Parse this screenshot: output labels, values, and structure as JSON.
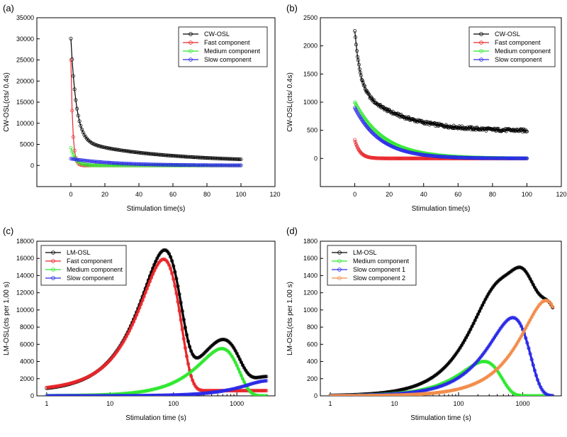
{
  "chart_data": [
    {
      "panel": "(a)",
      "type": "scatter",
      "xscale": "linear",
      "xlim": [
        -20,
        120
      ],
      "ylim": [
        -5000,
        35000
      ],
      "xticks": [
        0,
        20,
        40,
        60,
        80,
        100,
        120
      ],
      "yticks": [
        0,
        5000,
        10000,
        15000,
        20000,
        25000,
        30000,
        35000
      ],
      "xlabel": "Stimulation time(s)",
      "ylabel": "CW-OSL(cts/ 0.4s)",
      "legend_position": "top-right",
      "series": [
        {
          "name": "CW-OSL",
          "color": "#000000",
          "model": "cw",
          "terms": [
            [
              24000,
              3.2
            ],
            [
              4200,
              40
            ],
            [
              1600,
              160
            ],
            [
              250,
              0
            ]
          ],
          "x_range": [
            0,
            100
          ],
          "points": 140
        },
        {
          "name": "Fast component",
          "color": "#e8262a",
          "model": "cw",
          "terms": [
            [
              25000,
              1.1
            ]
          ],
          "x_range": [
            0,
            100
          ],
          "points": 140
        },
        {
          "name": "Medium component",
          "color": "#2ee82e",
          "model": "cw",
          "terms": [
            [
              4200,
              2.8
            ]
          ],
          "x_range": [
            0,
            100
          ],
          "points": 140
        },
        {
          "name": "Slow component",
          "color": "#2a2ae8",
          "model": "cw",
          "terms": [
            [
              1600,
              25
            ]
          ],
          "x_range": [
            0,
            100
          ],
          "points": 140
        }
      ]
    },
    {
      "panel": "(b)",
      "type": "scatter",
      "xscale": "linear",
      "xlim": [
        -20,
        120
      ],
      "ylim": [
        -500,
        2500
      ],
      "xticks": [
        0,
        20,
        40,
        60,
        80,
        100,
        120
      ],
      "yticks": [
        0,
        500,
        1000,
        1500,
        2000,
        2500
      ],
      "xlabel": "Stimulation time(s)",
      "ylabel": "CW-OSL(cts/ 0.4s)",
      "legend_position": "top-right",
      "series": [
        {
          "name": "CW-OSL",
          "color": "#000000",
          "model": "cw",
          "terms": [
            [
              1000,
              3
            ],
            [
              800,
              25
            ],
            [
              480,
              0
            ]
          ],
          "x_range": [
            0,
            100
          ],
          "points": 250,
          "noise": 25
        },
        {
          "name": "Fast component",
          "color": "#e8262a",
          "model": "cw",
          "terms": [
            [
              330,
              3
            ]
          ],
          "x_range": [
            0,
            100
          ],
          "points": 250
        },
        {
          "name": "Medium component",
          "color": "#2ee82e",
          "model": "cw",
          "terms": [
            [
              1000,
              17
            ]
          ],
          "x_range": [
            0,
            100
          ],
          "points": 250
        },
        {
          "name": "Slow component",
          "color": "#2a2ae8",
          "model": "cw",
          "terms": [
            [
              900,
              15
            ]
          ],
          "x_range": [
            0,
            100
          ],
          "points": 250
        }
      ]
    },
    {
      "panel": "(c)",
      "type": "line",
      "xscale": "log",
      "xlim": [
        0.7,
        4000
      ],
      "ylim": [
        0,
        18000
      ],
      "xticks": [
        1,
        10,
        100,
        1000
      ],
      "xtick_labels": [
        "1",
        "10",
        "100",
        "1000"
      ],
      "yticks": [
        0,
        2000,
        4000,
        6000,
        8000,
        10000,
        12000,
        14000,
        16000,
        18000
      ],
      "xlabel": "Stimulation time (s)",
      "ylabel": "LM-OSL(cts per 1.00 s)",
      "legend_position": "top-left",
      "series": [
        {
          "name": "LM-OSL",
          "color": "#000000",
          "model": "lm",
          "components": [
            [
              15300,
              70
            ],
            [
              5500,
              580
            ],
            [
              1750,
              3000
            ]
          ],
          "baseline": 500,
          "x_range": [
            1,
            3000
          ],
          "points": 300
        },
        {
          "name": "Fast component",
          "color": "#e8262a",
          "model": "lm",
          "components": [
            [
              15300,
              70
            ]
          ],
          "baseline": 600,
          "x_range": [
            1,
            3000
          ],
          "points": 300
        },
        {
          "name": "Medium component",
          "color": "#2ee82e",
          "model": "lm",
          "components": [
            [
              5500,
              580
            ]
          ],
          "baseline": 0,
          "x_range": [
            1,
            3000
          ],
          "points": 300
        },
        {
          "name": "Slow component",
          "color": "#2a2ae8",
          "model": "lm",
          "components": [
            [
              1750,
              3000
            ]
          ],
          "baseline": 0,
          "x_range": [
            1,
            3000
          ],
          "points": 300
        }
      ]
    },
    {
      "panel": "(d)",
      "type": "line",
      "xscale": "log",
      "xlim": [
        0.7,
        4000
      ],
      "ylim": [
        0,
        1800
      ],
      "xticks": [
        1,
        10,
        100,
        1000
      ],
      "xtick_labels": [
        "1",
        "10",
        "100",
        "1000"
      ],
      "yticks": [
        0,
        200,
        400,
        600,
        800,
        1000,
        1200,
        1400,
        1600,
        1800
      ],
      "xlabel": "Stimulation time (s)",
      "ylabel": "LM-OSL(cts per 1.00 s)",
      "legend_position": "top-left",
      "series": [
        {
          "name": "LM-OSL",
          "color": "#000000",
          "model": "lm",
          "components": [
            [
              400,
              250
            ],
            [
              900,
              700
            ],
            [
              1100,
              2300
            ]
          ],
          "baseline": 0,
          "x_range": [
            1,
            3000
          ],
          "points": 300
        },
        {
          "name": "Medium component",
          "color": "#2ee82e",
          "model": "lm",
          "components": [
            [
              400,
              250
            ]
          ],
          "baseline": 0,
          "x_range": [
            1,
            3000
          ],
          "points": 300
        },
        {
          "name": "Slow component 1",
          "color": "#2a2ae8",
          "model": "lm",
          "components": [
            [
              910,
              700
            ]
          ],
          "baseline": 0,
          "x_range": [
            1,
            3000
          ],
          "points": 300
        },
        {
          "name": "Slow component 2",
          "color": "#f28c4a",
          "model": "lm",
          "components": [
            [
              1110,
              2300
            ]
          ],
          "baseline": 0,
          "x_range": [
            1,
            3000
          ],
          "points": 300
        }
      ]
    }
  ]
}
